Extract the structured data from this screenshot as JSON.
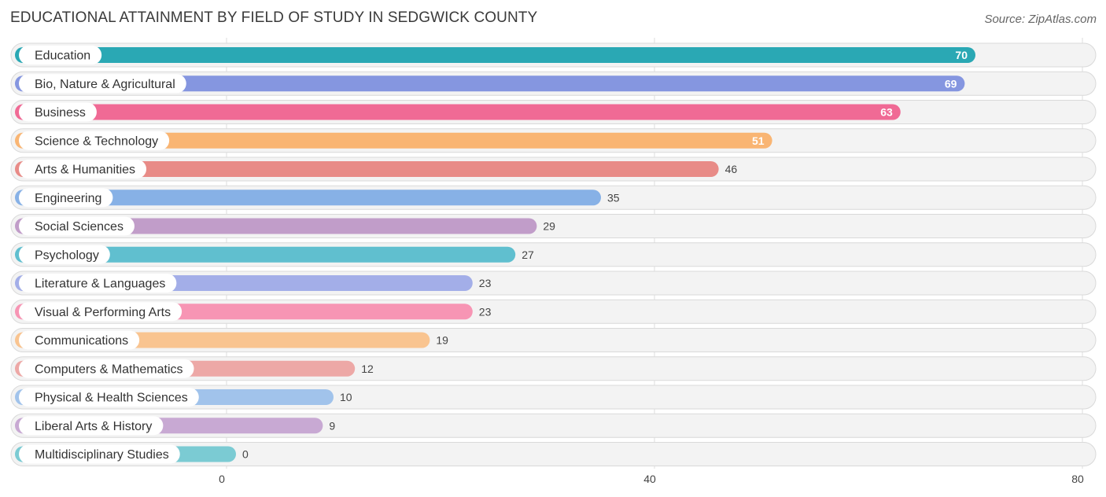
{
  "chart_data": {
    "type": "bar",
    "orientation": "horizontal",
    "title": "EDUCATIONAL ATTAINMENT BY FIELD OF STUDY IN SEDGWICK COUNTY",
    "source": "Source: ZipAtlas.com",
    "categories": [
      "Education",
      "Bio, Nature & Agricultural",
      "Business",
      "Science & Technology",
      "Arts & Humanities",
      "Engineering",
      "Social Sciences",
      "Psychology",
      "Literature & Languages",
      "Visual & Performing Arts",
      "Communications",
      "Computers & Mathematics",
      "Physical & Health Sciences",
      "Liberal Arts & History",
      "Multidisciplinary Studies"
    ],
    "values": [
      70,
      69,
      63,
      51,
      46,
      35,
      29,
      27,
      23,
      23,
      19,
      12,
      10,
      9,
      0
    ],
    "colors": [
      "#2aa8b4",
      "#8596e0",
      "#f06a95",
      "#f9b573",
      "#e88b87",
      "#87b1e6",
      "#c19dc9",
      "#60bfcf",
      "#a3aee8",
      "#f795b4",
      "#f9c490",
      "#eda8a6",
      "#a1c3eb",
      "#c8a9d3",
      "#7bcbd3"
    ],
    "value_label_inside": [
      true,
      true,
      true,
      true,
      false,
      false,
      false,
      false,
      false,
      false,
      false,
      false,
      false,
      false,
      false
    ],
    "xlim": [
      0,
      80
    ],
    "xticks": [
      0,
      40,
      80
    ],
    "grid": true
  }
}
